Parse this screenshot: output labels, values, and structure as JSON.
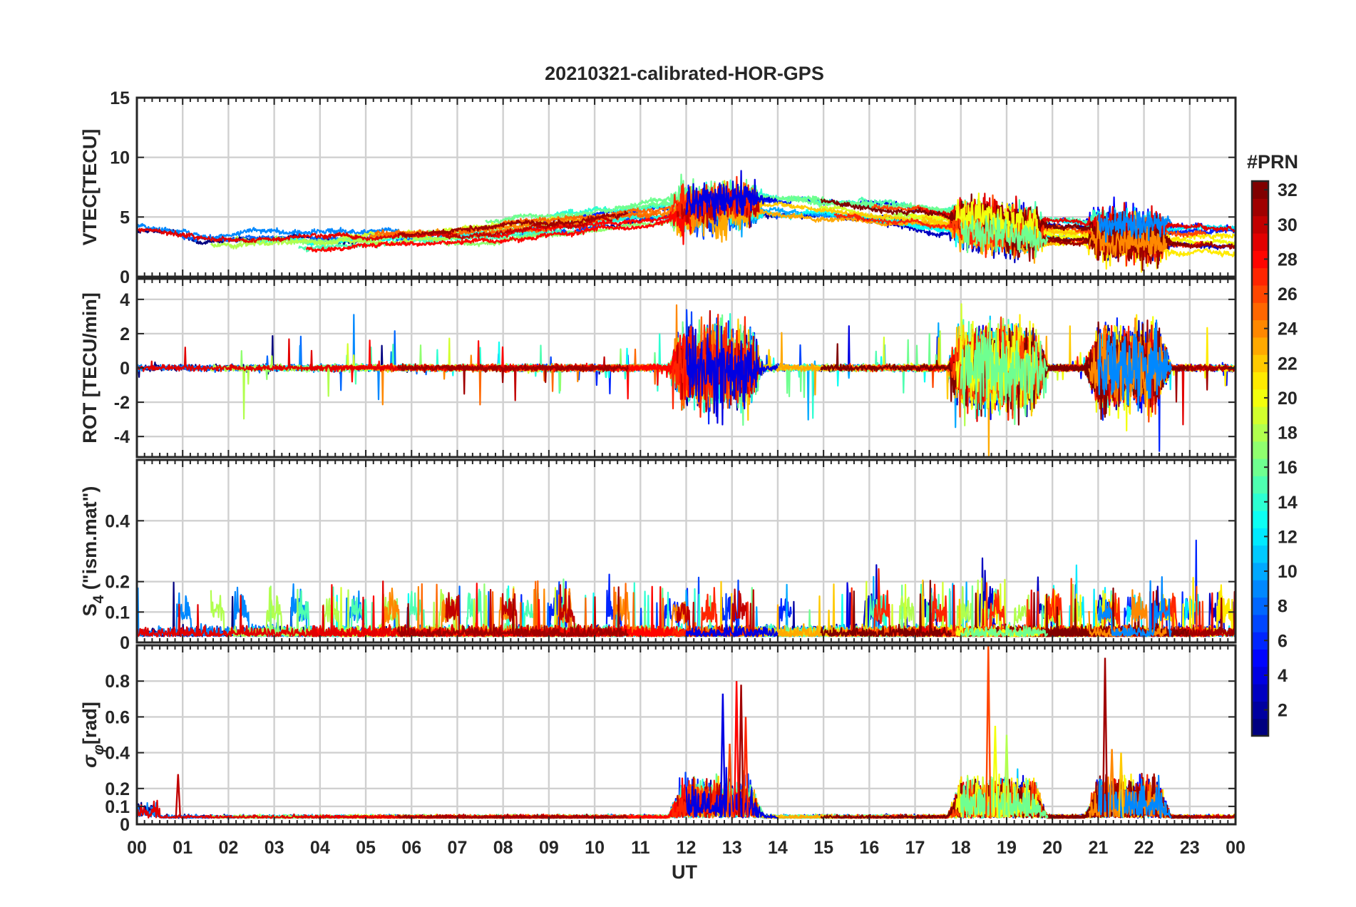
{
  "chart_data": {
    "type": "line",
    "title": "20210321-calibrated-HOR-GPS",
    "xlabel": "UT",
    "x_tick_labels": [
      "00",
      "01",
      "02",
      "03",
      "04",
      "05",
      "06",
      "07",
      "08",
      "09",
      "10",
      "11",
      "12",
      "13",
      "14",
      "15",
      "16",
      "17",
      "18",
      "19",
      "20",
      "21",
      "22",
      "23",
      "00"
    ],
    "xlim_hours": [
      0,
      24
    ],
    "panels": [
      {
        "key": "vtec",
        "ylabel": "VTEC[TECU]",
        "ylim": [
          0,
          15
        ],
        "yticks": [
          0,
          5,
          10,
          15
        ],
        "ytick_labels": [
          "0",
          "5",
          "10",
          "15"
        ]
      },
      {
        "key": "rot",
        "ylabel": "ROT [TECU/min]",
        "ylim": [
          -5.2,
          5.2
        ],
        "yticks": [
          -4,
          -2,
          0,
          2,
          4
        ],
        "ytick_labels": [
          "-4",
          "-2",
          "0",
          "2",
          "4"
        ]
      },
      {
        "key": "s4",
        "ylabel": "S4 (\"ism.mat\")",
        "ylabel_main": "S",
        "ylabel_sub": "4",
        "ylabel_rest": " (\"ism.mat\")",
        "ylim": [
          0,
          0.6
        ],
        "yticks": [
          0,
          0.1,
          0.2,
          0.4
        ],
        "ytick_labels": [
          "0",
          "0.1",
          "0.2",
          "0.4"
        ]
      },
      {
        "key": "sigphi",
        "ylabel": "σφ[rad]",
        "ylabel_main": "σ",
        "ylabel_sub": "φ",
        "ylabel_rest": "[rad]",
        "ylim": [
          0,
          1.0
        ],
        "yticks": [
          0,
          0.1,
          0.2,
          0.4,
          0.6,
          0.8
        ],
        "ytick_labels": [
          "0",
          "0.1",
          "0.2",
          "0.4",
          "0.6",
          "0.8"
        ]
      }
    ],
    "colorbar": {
      "label": "#PRN",
      "range": [
        1,
        32
      ],
      "ticks": [
        2,
        4,
        6,
        8,
        10,
        12,
        14,
        16,
        18,
        20,
        22,
        24,
        26,
        28,
        30,
        32
      ],
      "tick_labels": [
        "2",
        "4",
        "6",
        "8",
        "10",
        "12",
        "14",
        "16",
        "18",
        "20",
        "22",
        "24",
        "26",
        "28",
        "30",
        "32"
      ],
      "colormap": "jet"
    },
    "activity_windows_hours": [
      [
        11.9,
        13.4
      ],
      [
        18.0,
        19.6
      ],
      [
        21.0,
        22.3
      ]
    ],
    "sigphi_peaks": [
      {
        "t": 0.9,
        "v": 0.28
      },
      {
        "t": 12.8,
        "v": 0.73
      },
      {
        "t": 12.95,
        "v": 0.45
      },
      {
        "t": 13.1,
        "v": 0.8
      },
      {
        "t": 13.2,
        "v": 0.78
      },
      {
        "t": 13.3,
        "v": 0.6
      },
      {
        "t": 18.6,
        "v": 1.0
      },
      {
        "t": 18.75,
        "v": 0.55
      },
      {
        "t": 19.0,
        "v": 0.5
      },
      {
        "t": 21.15,
        "v": 0.93
      },
      {
        "t": 21.3,
        "v": 0.42
      },
      {
        "t": 21.5,
        "v": 0.4
      }
    ]
  }
}
